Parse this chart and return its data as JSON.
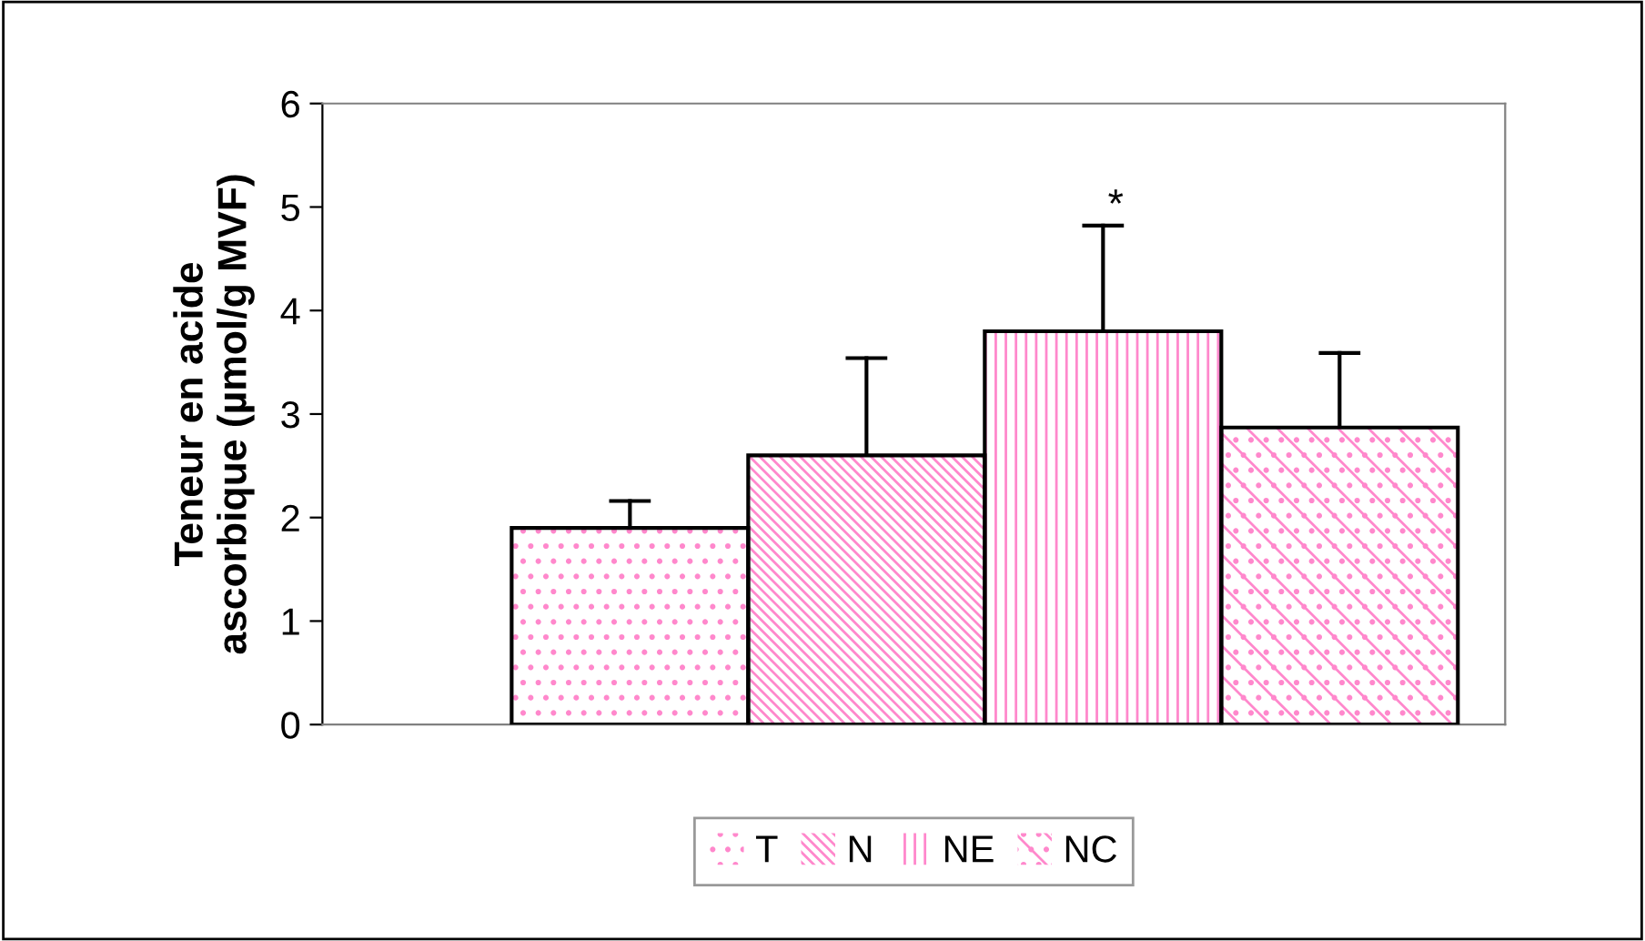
{
  "chart_data": {
    "type": "bar",
    "ylabel": "Teneur en acide\nascorbique (µmol/g MVF)",
    "categories": [
      null
    ],
    "series": [
      {
        "name": "T",
        "color": "#ff88cc",
        "values": [
          1.9
        ],
        "errors": [
          [
            1.9,
            2.16
          ]
        ]
      },
      {
        "name": "N",
        "color": "#ff88cc",
        "values": [
          2.6
        ],
        "errors": [
          [
            2.6,
            3.54
          ]
        ]
      },
      {
        "name": "NE",
        "color": "#ff88cc",
        "values": [
          3.8
        ],
        "errors": [
          [
            3.8,
            4.82
          ]
        ]
      },
      {
        "name": "NC",
        "color": "#ff88cc",
        "values": [
          2.87
        ],
        "errors": [
          [
            2.87,
            3.59
          ]
        ]
      }
    ],
    "annotations": [
      "*"
    ],
    "ylim": [
      0,
      6
    ],
    "yticks": [
      0,
      1,
      2,
      3,
      4,
      5,
      6
    ],
    "grid": false,
    "legend": "bottom"
  }
}
